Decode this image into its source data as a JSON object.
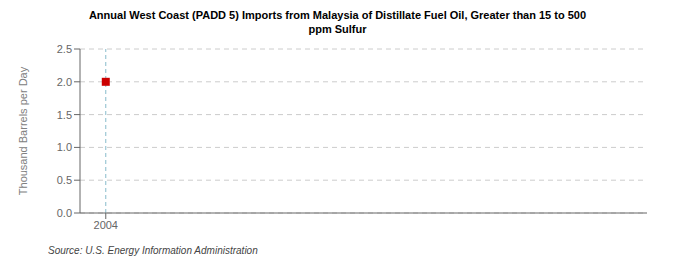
{
  "chart_data": {
    "type": "scatter",
    "title": "Annual West Coast (PADD 5) Imports from Malaysia of Distillate Fuel Oil, Greater than 15 to 500\nppm Sulfur",
    "ylabel": "Thousand Barrels per Day",
    "source": "Source: U.S. Energy Information Administration",
    "x": [
      2004
    ],
    "values": [
      2.0
    ],
    "color": "#cc0000",
    "marker": "square",
    "xlim": [
      2003.5,
      2014.5
    ],
    "xticks": [
      2004
    ],
    "ylim": [
      0,
      2.5
    ],
    "yticks": [
      {
        "value": 0.0,
        "label": "0.0"
      },
      0.5,
      {
        "value": 1.0,
        "label": "1.0"
      },
      1.5,
      {
        "value": 2.0,
        "label": "2.0"
      },
      2.5
    ],
    "grid": true,
    "reference_lines": [
      {
        "x": 2004,
        "color": "#88bbcc",
        "line_style": "dashed"
      }
    ]
  }
}
